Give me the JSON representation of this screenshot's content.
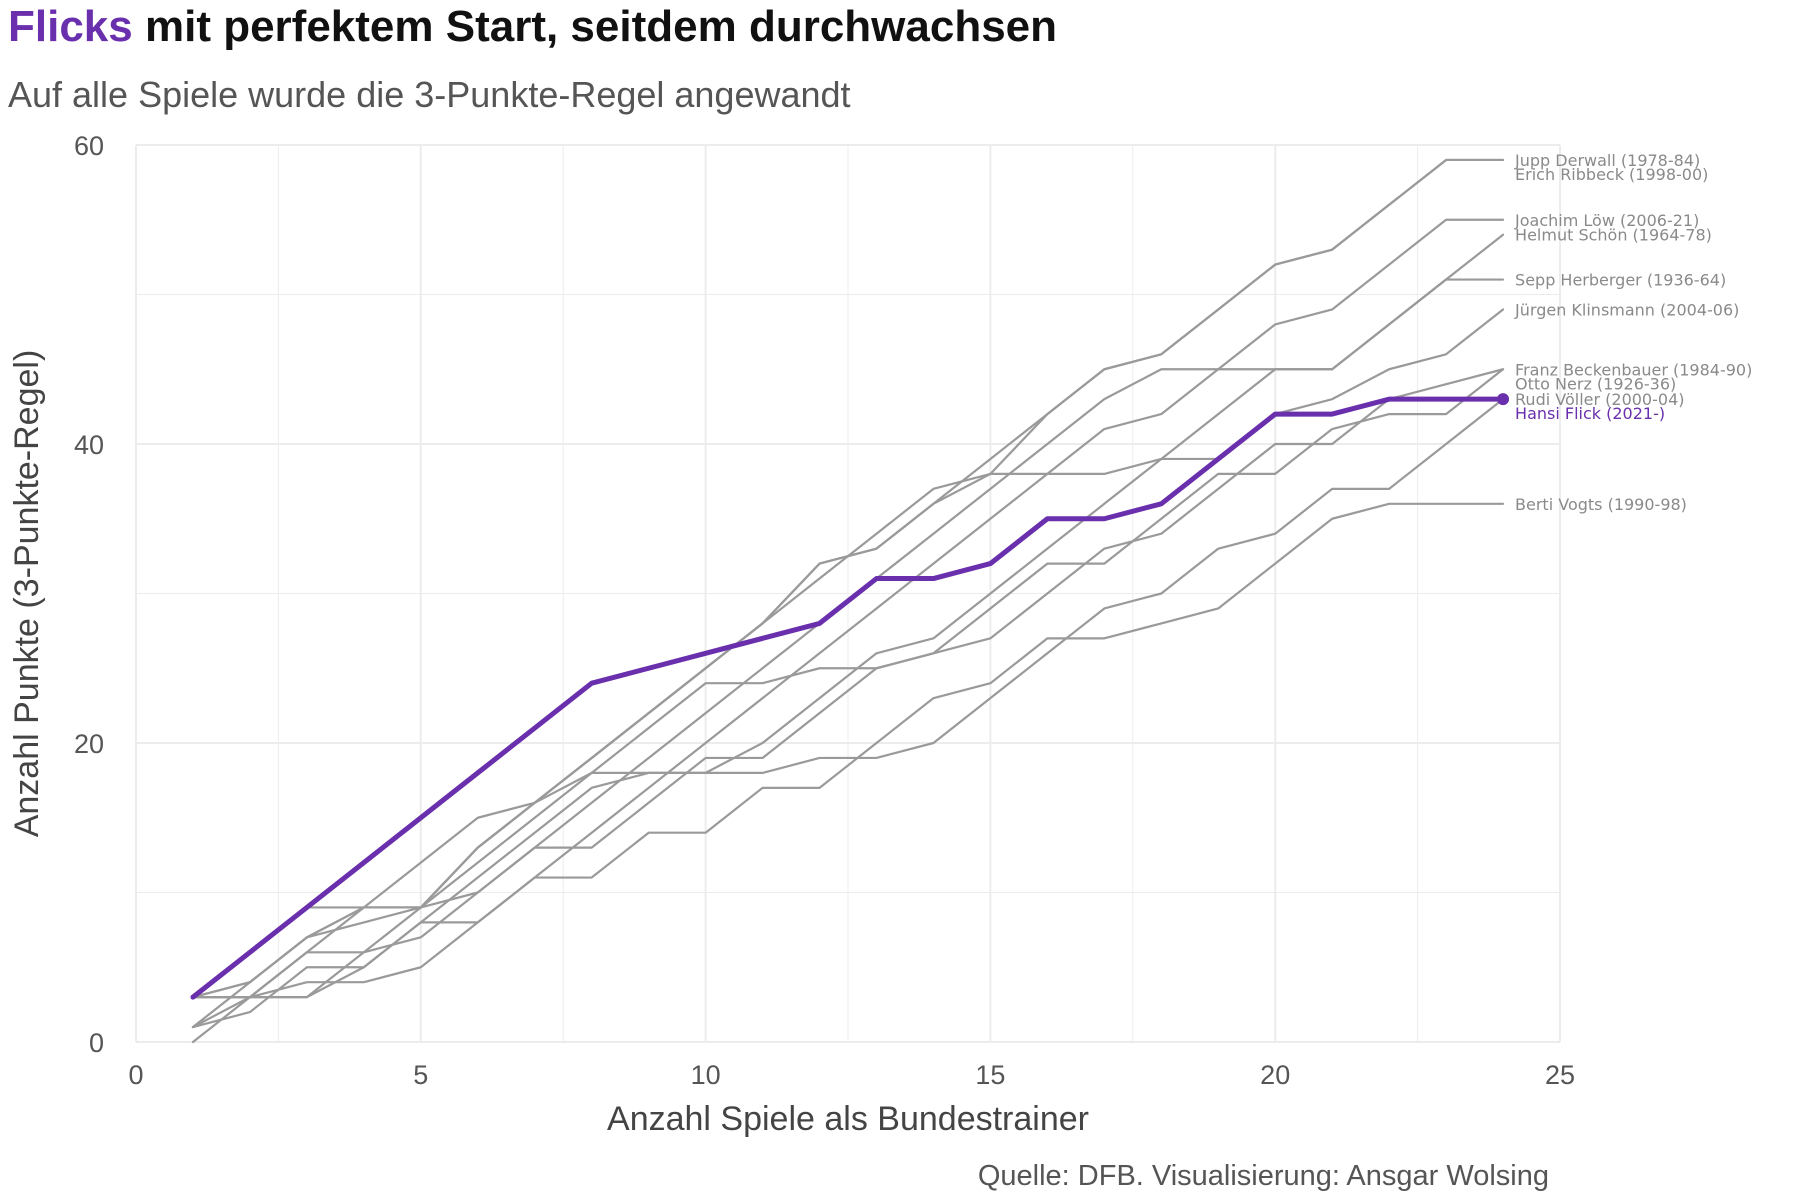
{
  "header": {
    "title_accent": "Flicks",
    "title_rest": " mit perfektem Start, seitdem durchwachsen",
    "subtitle": "Auf alle Spiele wurde die 3-Punkte-Regel angewandt"
  },
  "caption": "Quelle: DFB. Visualisierung: Ansgar Wolsing",
  "colors": {
    "highlight": "#6a2fad",
    "other": "#9a9a9a",
    "grid": "#ececec"
  },
  "chart_data": {
    "type": "line",
    "title": "Flicks mit perfektem Start, seitdem durchwachsen",
    "subtitle": "Auf alle Spiele wurde die 3-Punkte-Regel angewandt",
    "xlabel": "Anzahl Spiele als Bundestrainer",
    "ylabel": "Anzahl Punkte (3-Punkte-Regel)",
    "xlim": [
      0,
      25
    ],
    "ylim": [
      0,
      60
    ],
    "xticks": [
      0,
      5,
      10,
      15,
      20,
      25
    ],
    "yticks": [
      0,
      20,
      40,
      60
    ],
    "x": [
      1,
      2,
      3,
      4,
      5,
      6,
      7,
      8,
      9,
      10,
      11,
      12,
      13,
      14,
      15,
      16,
      17,
      18,
      19,
      20,
      21,
      22,
      23,
      24
    ],
    "legend": "direct labels at line ends (right)",
    "grid": true,
    "highlight": "Hansi Flick (2021-)",
    "series": [
      {
        "name": "Jupp Derwall (1978-84)",
        "values": [
          3,
          4,
          7,
          9,
          9,
          13,
          16,
          19,
          22,
          25,
          28,
          32,
          33,
          36,
          38,
          42,
          45,
          46,
          49,
          52,
          53,
          56,
          59,
          59
        ]
      },
      {
        "name": "Joachim Löw (2006-21)",
        "values": [
          3,
          6,
          9,
          9,
          9,
          13,
          16,
          19,
          22,
          25,
          28,
          31,
          34,
          37,
          38,
          38,
          41,
          42,
          45,
          48,
          49,
          52,
          55,
          55
        ]
      },
      {
        "name": "Helmut Schön (1964-78)",
        "values": [
          1,
          3,
          6,
          6,
          7,
          10,
          13,
          16,
          19,
          22,
          25,
          28,
          31,
          34,
          37,
          40,
          43,
          45,
          45,
          45,
          45,
          48,
          51,
          54
        ]
      },
      {
        "name": "Sepp Herberger (1936-64)",
        "values": [
          3,
          3,
          3,
          5,
          8,
          8,
          11,
          14,
          17,
          20,
          23,
          26,
          29,
          32,
          35,
          38,
          38,
          39,
          42,
          45,
          45,
          48,
          51,
          51
        ]
      },
      {
        "name": "Rudi Völler (2000-04)",
        "values": [
          1,
          2,
          5,
          5,
          8,
          11,
          14,
          17,
          18,
          18,
          18,
          19,
          19,
          20,
          23,
          26,
          29,
          30,
          33,
          34,
          37,
          37,
          40,
          43
        ]
      },
      {
        "name": "Jürgen Klinsmann (2004-06)",
        "values": [
          0,
          3,
          6,
          9,
          12,
          15,
          16,
          18,
          18,
          18,
          20,
          23,
          26,
          27,
          30,
          33,
          36,
          39,
          39,
          42,
          43,
          45,
          46,
          49
        ]
      },
      {
        "name": "Berti Vogts (1990-98)",
        "values": [
          3,
          3,
          4,
          4,
          5,
          8,
          11,
          11,
          14,
          14,
          17,
          17,
          20,
          23,
          24,
          27,
          27,
          28,
          29,
          32,
          35,
          36,
          36,
          36
        ]
      },
      {
        "name": "Franz Beckenbauer (1984-90)",
        "values": [
          3,
          3,
          3,
          6,
          9,
          10,
          13,
          13,
          16,
          19,
          19,
          22,
          25,
          26,
          29,
          32,
          32,
          35,
          38,
          38,
          41,
          42,
          42,
          45
        ]
      },
      {
        "name": "Otto Nerz (1926-36)",
        "values": [
          1,
          4,
          7,
          8,
          9,
          12,
          15,
          18,
          21,
          24,
          24,
          25,
          25,
          26,
          27,
          30,
          33,
          34,
          37,
          40,
          40,
          43,
          44,
          45
        ]
      },
      {
        "name": "Erich Ribbeck (1998-00)",
        "values": [
          3,
          4,
          7,
          9,
          9,
          13,
          16,
          19,
          22,
          25,
          28,
          32,
          33,
          36,
          39,
          42,
          45,
          46,
          49,
          52,
          53,
          56,
          59,
          59
        ]
      },
      {
        "name": "Hansi Flick (2021-)",
        "values": [
          3,
          6,
          9,
          12,
          15,
          18,
          21,
          24,
          25,
          26,
          27,
          28,
          31,
          31,
          32,
          35,
          35,
          36,
          39,
          42,
          42,
          43,
          43,
          43
        ]
      }
    ]
  }
}
